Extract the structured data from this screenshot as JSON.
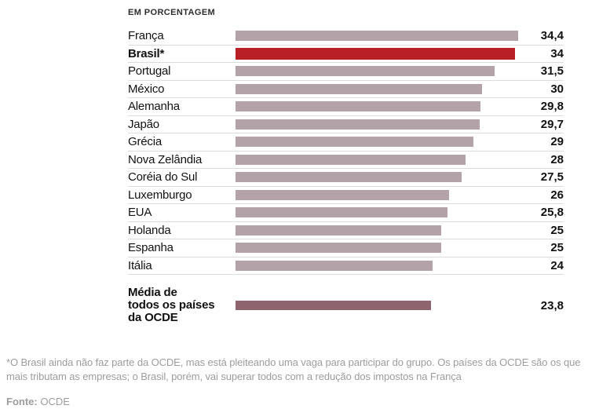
{
  "chart_data": {
    "type": "bar",
    "orientation": "horizontal",
    "title": "EM PORCENTAGEM",
    "xlim": [
      0,
      34.4
    ],
    "grid": false,
    "legend": null,
    "categories": [
      "França",
      "Brasil*",
      "Portugal",
      "México",
      "Alemanha",
      "Japão",
      "Grécia",
      "Nova Zelândia",
      "Coréia do Sul",
      "Luxemburgo",
      "EUA",
      "Holanda",
      "Espanha",
      "Itália"
    ],
    "values": [
      34.4,
      34,
      31.5,
      30,
      29.8,
      29.7,
      29,
      28,
      27.5,
      26,
      25.8,
      25,
      25,
      24
    ],
    "value_labels": [
      "34,4",
      "34",
      "31,5",
      "30",
      "29,8",
      "29,7",
      "29",
      "28",
      "27,5",
      "26",
      "25,8",
      "25",
      "25",
      "24"
    ],
    "highlight_index": 1,
    "average": {
      "label": "Média de\ntodos os países\nda OCDE",
      "value": 23.8,
      "value_label": "23,8"
    }
  },
  "footer": {
    "note": "*O Brasil ainda não faz parte da OCDE, mas está pleiteando uma vaga para participar do grupo. Os países da OCDE são os que mais tributam as empresas; o Brasil, porém, vai superar todos com a redução dos impostos na França",
    "source_label": "Fonte:",
    "source": "OCDE"
  },
  "colors": {
    "bar_default": "#b3a2a8",
    "bar_highlight": "#b82025",
    "bar_average": "#8e656e",
    "separator": "#dcdcdc",
    "label_text": "#111111",
    "footer_text": "#9c9c9c"
  }
}
